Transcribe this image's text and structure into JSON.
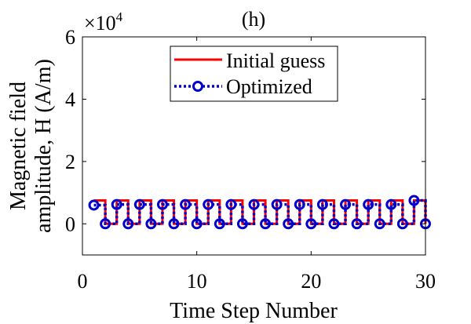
{
  "chart_data": {
    "type": "line",
    "title": "(h)",
    "xlabel": "Time Step Number",
    "ylabel_lines": [
      "Magnetic field",
      "amplitude, H (A/m)"
    ],
    "y_exponent": {
      "base": "×10",
      "power": "4"
    },
    "xlim": [
      0,
      30
    ],
    "ylim": [
      -10000,
      60000
    ],
    "xticks": [
      0,
      10,
      20,
      30
    ],
    "xtick_labels": [
      "0",
      "10",
      "20",
      "30"
    ],
    "yticks": [
      0,
      20000,
      40000,
      60000
    ],
    "ytick_labels": [
      "0",
      "2",
      "4",
      "6"
    ],
    "legend_position": "top-center",
    "series": [
      {
        "name": "Initial guess",
        "color": "#ff0000",
        "style": "solid-stairs",
        "x": [
          1,
          2,
          3,
          4,
          5,
          6,
          7,
          8,
          9,
          10,
          11,
          12,
          13,
          14,
          15,
          16,
          17,
          18,
          19,
          20,
          21,
          22,
          23,
          24,
          25,
          26,
          27,
          28,
          29,
          30
        ],
        "values": [
          7500,
          0,
          7500,
          0,
          7500,
          0,
          7500,
          0,
          7500,
          0,
          7500,
          0,
          7500,
          0,
          7500,
          0,
          7500,
          0,
          7500,
          0,
          7500,
          0,
          7500,
          0,
          7500,
          0,
          7500,
          0,
          7500,
          0
        ]
      },
      {
        "name": "Optimized",
        "color": "#0000cc",
        "style": "dotted-stairs-circles",
        "x": [
          1,
          2,
          3,
          4,
          5,
          6,
          7,
          8,
          9,
          10,
          11,
          12,
          13,
          14,
          15,
          16,
          17,
          18,
          19,
          20,
          21,
          22,
          23,
          24,
          25,
          26,
          27,
          28,
          29,
          30
        ],
        "values": [
          6000,
          0,
          6200,
          0,
          6200,
          0,
          6200,
          0,
          6200,
          0,
          6200,
          0,
          6200,
          0,
          6200,
          0,
          6200,
          0,
          6200,
          0,
          6200,
          0,
          6200,
          0,
          6200,
          0,
          6200,
          0,
          7500,
          0
        ]
      }
    ]
  }
}
